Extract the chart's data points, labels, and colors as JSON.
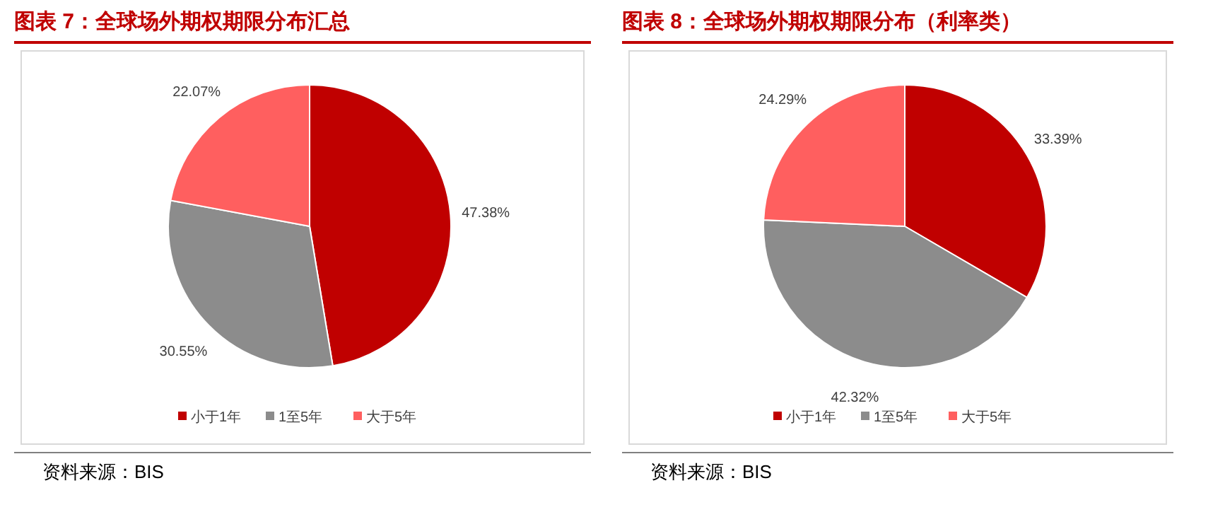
{
  "chart_data": [
    {
      "type": "pie",
      "title": "图表 7：全球场外期权期限分布汇总",
      "categories": [
        "小于1年",
        "1至5年",
        "大于5年"
      ],
      "values": [
        47.38,
        30.55,
        22.07
      ],
      "colors": [
        "#c00000",
        "#8c8c8c",
        "#ff5f5f"
      ],
      "value_labels": [
        "47.38%",
        "30.55%",
        "22.07%"
      ],
      "legend": "bottom",
      "annotations": [
        "资料来源：BIS"
      ]
    },
    {
      "type": "pie",
      "title": "图表 8：全球场外期权期限分布（利率类）",
      "categories": [
        "小于1年",
        "1至5年",
        "大于5年"
      ],
      "values": [
        33.39,
        42.32,
        24.29
      ],
      "colors": [
        "#c00000",
        "#8c8c8c",
        "#ff5f5f"
      ],
      "value_labels": [
        "33.39%",
        "42.32%",
        "24.29%"
      ],
      "legend": "bottom",
      "annotations": [
        "资料来源：BIS"
      ]
    }
  ]
}
